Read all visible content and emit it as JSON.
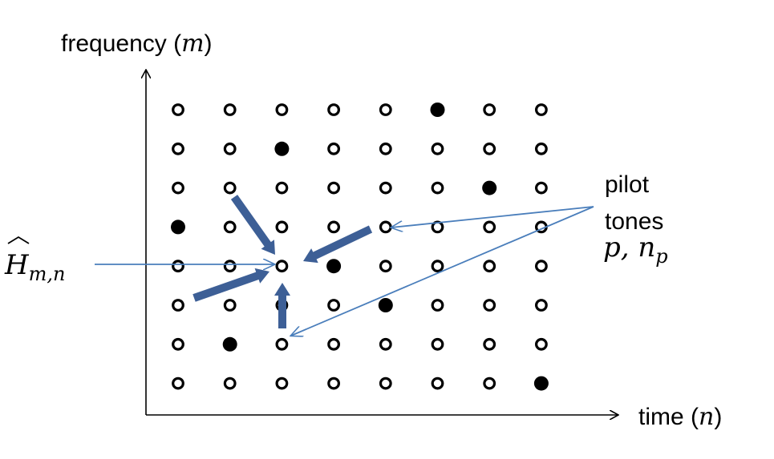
{
  "axes": {
    "y_label_word": "frequency",
    "y_label_var": "m",
    "x_label_word": "time",
    "x_label_var": "n"
  },
  "grid": {
    "columns": 8,
    "rows": 8,
    "pilot_positions": [
      [
        0,
        3
      ],
      [
        1,
        6
      ],
      [
        2,
        1
      ],
      [
        3,
        4
      ],
      [
        4,
        5
      ],
      [
        5,
        0
      ],
      [
        6,
        2
      ],
      [
        7,
        7
      ]
    ],
    "target": [
      4,
      2
    ]
  },
  "labels": {
    "pilot_line1": "pilot",
    "pilot_line2": "tones",
    "pilot_math": "p, n",
    "pilot_math_sub": "p",
    "estimate_var": "H",
    "estimate_sub": "m,n"
  },
  "colors": {
    "thin_arrow": "#4a7ebb",
    "thick_arrow": "#3d5f96",
    "dot": "#000000"
  }
}
